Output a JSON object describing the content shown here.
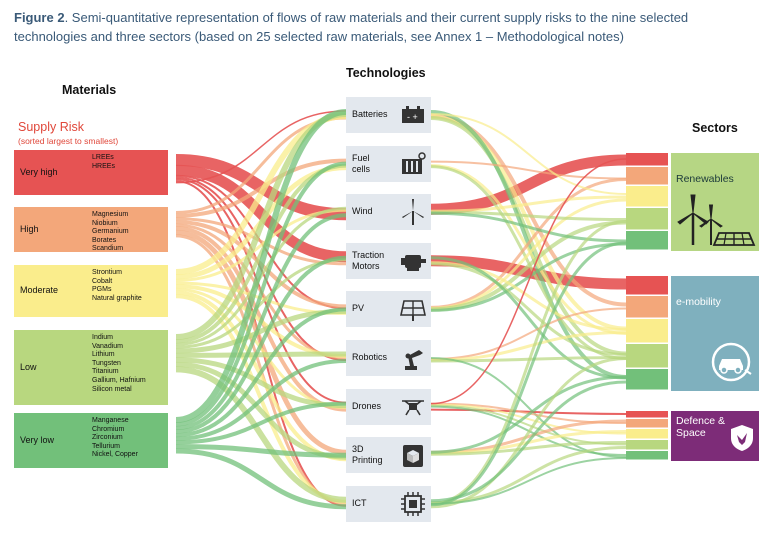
{
  "caption": {
    "figure": "Figure 2",
    "text": ". Semi-quantitative representation of flows of raw materials and their current supply risks to the nine selected technologies and three sectors (based on 25 selected raw materials, see Annex 1 – Methodological notes)"
  },
  "headers": {
    "materials": "Materials",
    "technologies": "Technologies",
    "sectors": "Sectors"
  },
  "supply_risk": {
    "title": "Supply Risk",
    "subtitle": "(sorted largest to smallest)"
  },
  "colors": {
    "very_high": "#e65353",
    "high": "#f3a77a",
    "moderate": "#faed8c",
    "low": "#b8d77f",
    "very_low": "#72c07a",
    "tech_box": "#e3e8ee",
    "renewables": "#b6d684",
    "emobility": "#7fb0be",
    "defence": "#7d2c78"
  },
  "materials": [
    {
      "risk": "Very high",
      "color_key": "very_high",
      "items": "LREEs\nHREEs"
    },
    {
      "risk": "High",
      "color_key": "high",
      "items": "Magnesium\nNiobium\nGermanium\nBorates\nScandium"
    },
    {
      "risk": "Moderate",
      "color_key": "moderate",
      "items": "Strontium\nCobalt\nPGMs\nNatural graphite"
    },
    {
      "risk": "Low",
      "color_key": "low",
      "items": "Indium\nVanadium\nLithium\nTungsten\nTitanium\nGallium, Hafnium\nSilicon metal"
    },
    {
      "risk": "Very low",
      "color_key": "very_low",
      "items": "Manganese\nChromium\nZirconium\nTellurium\nNickel, Copper"
    }
  ],
  "technologies": [
    {
      "label": "Batteries",
      "icon": "battery-icon"
    },
    {
      "label": "Fuel\ncells",
      "icon": "fuel-cell-icon"
    },
    {
      "label": "Wind",
      "icon": "wind-turbine-icon"
    },
    {
      "label": "Traction\nMotors",
      "icon": "motor-icon"
    },
    {
      "label": "PV",
      "icon": "solar-panel-icon"
    },
    {
      "label": "Robotics",
      "icon": "robot-arm-icon"
    },
    {
      "label": "Drones",
      "icon": "drone-icon"
    },
    {
      "label": "3D\nPrinting",
      "icon": "3d-printer-icon"
    },
    {
      "label": "ICT",
      "icon": "chip-icon"
    }
  ],
  "sectors": [
    {
      "label": "Renewables",
      "color_key": "renewables",
      "icon": "wind-solar-icon"
    },
    {
      "label": "e-mobility",
      "color_key": "emobility",
      "icon": "electric-car-icon"
    },
    {
      "label": "Defence &\nSpace",
      "color_key": "defence",
      "icon": "shield-eagle-icon"
    }
  ]
}
